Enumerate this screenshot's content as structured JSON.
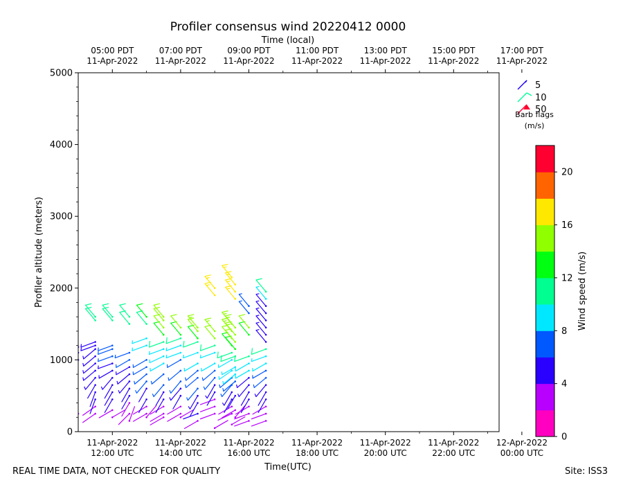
{
  "title": "Profiler consensus wind 20220412 0000",
  "footer": {
    "note": "REAL TIME DATA, NOT CHECKED FOR QUALITY",
    "site": "Site: ISS3"
  },
  "chart_data": {
    "type": "scatter",
    "title": "Profiler consensus wind 20220412 0000",
    "xlabel": "Time(UTC)",
    "x2label": "Time (local)",
    "ylabel": "Profiler altitude (meters)",
    "ylim": [
      0,
      5000
    ],
    "xlim_hours_utc": [
      11.0,
      23.333
    ],
    "yticks": [
      0,
      1000,
      2000,
      3000,
      4000,
      5000
    ],
    "xticks_bottom": [
      {
        "h": 12,
        "line1": "11-Apr-2022",
        "line2": "12:00 UTC"
      },
      {
        "h": 14,
        "line1": "11-Apr-2022",
        "line2": "14:00 UTC"
      },
      {
        "h": 16,
        "line1": "11-Apr-2022",
        "line2": "16:00 UTC"
      },
      {
        "h": 18,
        "line1": "11-Apr-2022",
        "line2": "18:00 UTC"
      },
      {
        "h": 20,
        "line1": "11-Apr-2022",
        "line2": "20:00 UTC"
      },
      {
        "h": 22,
        "line1": "11-Apr-2022",
        "line2": "22:00 UTC"
      },
      {
        "h": 24,
        "line1": "12-Apr-2022",
        "line2": "00:00 UTC"
      }
    ],
    "xticks_top": [
      {
        "h": 12,
        "line1": "05:00 PDT",
        "line2": "11-Apr-2022"
      },
      {
        "h": 14,
        "line1": "07:00 PDT",
        "line2": "11-Apr-2022"
      },
      {
        "h": 16,
        "line1": "09:00 PDT",
        "line2": "11-Apr-2022"
      },
      {
        "h": 18,
        "line1": "11:00 PDT",
        "line2": "11-Apr-2022"
      },
      {
        "h": 20,
        "line1": "13:00 PDT",
        "line2": "11-Apr-2022"
      },
      {
        "h": 22,
        "line1": "15:00 PDT",
        "line2": "11-Apr-2022"
      },
      {
        "h": 24,
        "line1": "17:00 PDT",
        "line2": "11-Apr-2022"
      }
    ],
    "barb_legend": {
      "entries": [
        "5",
        "10",
        "50"
      ],
      "colors": [
        "#1a00ff",
        "#00ff99",
        "#ff0030"
      ],
      "title_line1": "Barb flags",
      "title_line2": "(m/s)"
    },
    "colorbar": {
      "label": "Wind speed (m/s)",
      "range": [
        0,
        22
      ],
      "ticks": [
        0,
        4,
        8,
        12,
        16,
        20
      ],
      "colors": [
        "#ff00c0",
        "#b800ff",
        "#2a00ff",
        "#0058ff",
        "#00e8ff",
        "#00ff90",
        "#00ff10",
        "#90ff00",
        "#ffe800",
        "#ff6400",
        "#ff0030"
      ]
    },
    "profiles": [
      {
        "t": 11.0,
        "points": [
          [
            250,
            3,
            245
          ],
          [
            1000,
            5,
            290
          ],
          [
            1100,
            5,
            290
          ],
          [
            1180,
            5,
            290
          ]
        ]
      },
      {
        "t": 11.5,
        "points": [
          [
            250,
            3,
            235
          ],
          [
            350,
            3,
            235
          ],
          [
            450,
            4,
            200
          ],
          [
            550,
            4,
            200
          ],
          [
            650,
            4,
            210
          ],
          [
            750,
            5,
            220
          ],
          [
            850,
            5,
            230
          ],
          [
            950,
            5,
            230
          ],
          [
            1050,
            5,
            230
          ],
          [
            1150,
            5,
            230
          ],
          [
            1200,
            5,
            250
          ],
          [
            1250,
            5,
            250
          ],
          [
            1550,
            10,
            320
          ],
          [
            1600,
            10,
            320
          ]
        ]
      },
      {
        "t": 12.0,
        "points": [
          [
            200,
            2,
            60
          ],
          [
            300,
            3,
            240
          ],
          [
            450,
            4,
            210
          ],
          [
            550,
            4,
            210
          ],
          [
            650,
            4,
            210
          ],
          [
            750,
            5,
            220
          ],
          [
            850,
            5,
            240
          ],
          [
            950,
            5,
            250
          ],
          [
            1050,
            6,
            250
          ],
          [
            1150,
            6,
            250
          ],
          [
            1200,
            6,
            250
          ],
          [
            1550,
            10,
            320
          ],
          [
            1600,
            10,
            320
          ]
        ]
      },
      {
        "t": 12.5,
        "points": [
          [
            150,
            2,
            20
          ],
          [
            250,
            3,
            225
          ],
          [
            400,
            3,
            210
          ],
          [
            500,
            4,
            210
          ],
          [
            600,
            4,
            210
          ],
          [
            700,
            5,
            220
          ],
          [
            800,
            5,
            230
          ],
          [
            900,
            5,
            240
          ],
          [
            1000,
            6,
            240
          ],
          [
            1100,
            7,
            250
          ],
          [
            1500,
            10,
            320
          ],
          [
            1600,
            11,
            320
          ]
        ]
      },
      {
        "t": 13.0,
        "points": [
          [
            200,
            2,
            40
          ],
          [
            250,
            3,
            240
          ],
          [
            350,
            3,
            240
          ],
          [
            450,
            4,
            210
          ],
          [
            600,
            4,
            210
          ],
          [
            700,
            6,
            220
          ],
          [
            800,
            7,
            230
          ],
          [
            900,
            7,
            240
          ],
          [
            1000,
            7,
            240
          ],
          [
            1200,
            9,
            250
          ],
          [
            1300,
            9,
            250
          ],
          [
            1500,
            11,
            320
          ],
          [
            1600,
            12,
            320
          ]
        ]
      },
      {
        "t": 13.5,
        "points": [
          [
            200,
            3,
            240
          ],
          [
            250,
            3,
            240
          ],
          [
            350,
            3,
            240
          ],
          [
            450,
            4,
            210
          ],
          [
            550,
            4,
            210
          ],
          [
            650,
            6,
            220
          ],
          [
            800,
            7,
            230
          ],
          [
            950,
            8,
            240
          ],
          [
            1050,
            8,
            245
          ],
          [
            1150,
            9,
            250
          ],
          [
            1250,
            10,
            250
          ],
          [
            1350,
            12,
            320
          ],
          [
            1450,
            14,
            320
          ],
          [
            1550,
            14,
            320
          ],
          [
            1600,
            14,
            320
          ]
        ]
      },
      {
        "t": 14.0,
        "points": [
          [
            200,
            2,
            60
          ],
          [
            250,
            3,
            240
          ],
          [
            350,
            3,
            240
          ],
          [
            500,
            4,
            210
          ],
          [
            600,
            5,
            220
          ],
          [
            700,
            7,
            220
          ],
          [
            850,
            7,
            230
          ],
          [
            1000,
            7,
            240
          ],
          [
            1100,
            8,
            250
          ],
          [
            1200,
            9,
            250
          ],
          [
            1300,
            10,
            250
          ],
          [
            1350,
            12,
            320
          ],
          [
            1450,
            14,
            320
          ]
        ]
      },
      {
        "t": 14.5,
        "points": [
          [
            150,
            3,
            240
          ],
          [
            250,
            4,
            250
          ],
          [
            400,
            4,
            210
          ],
          [
            500,
            5,
            210
          ],
          [
            600,
            6,
            220
          ],
          [
            750,
            7,
            230
          ],
          [
            850,
            7,
            230
          ],
          [
            950,
            8,
            240
          ],
          [
            1100,
            9,
            250
          ],
          [
            1250,
            10,
            250
          ],
          [
            1300,
            12,
            320
          ],
          [
            1400,
            14,
            320
          ],
          [
            1450,
            15,
            320
          ]
        ]
      },
      {
        "t": 15.0,
        "points": [
          [
            50,
            3,
            60
          ],
          [
            250,
            3,
            250
          ],
          [
            350,
            3,
            250
          ],
          [
            450,
            3,
            250
          ],
          [
            550,
            4,
            210
          ],
          [
            650,
            5,
            210
          ],
          [
            750,
            6,
            220
          ],
          [
            850,
            7,
            230
          ],
          [
            950,
            8,
            240
          ],
          [
            1100,
            9,
            250
          ],
          [
            1200,
            10,
            250
          ],
          [
            1300,
            14,
            320
          ],
          [
            1400,
            15,
            320
          ],
          [
            1900,
            16,
            320
          ],
          [
            2000,
            16,
            320
          ]
        ]
      },
      {
        "t": 15.5,
        "points": [
          [
            100,
            3,
            60
          ],
          [
            250,
            3,
            245
          ],
          [
            350,
            3,
            240
          ],
          [
            450,
            4,
            210
          ],
          [
            550,
            5,
            210
          ],
          [
            650,
            6,
            220
          ],
          [
            750,
            7,
            230
          ],
          [
            850,
            8,
            235
          ],
          [
            1000,
            9,
            240
          ],
          [
            1100,
            10,
            250
          ],
          [
            1200,
            12,
            320
          ],
          [
            1300,
            14,
            320
          ],
          [
            1400,
            15,
            320
          ],
          [
            1500,
            15,
            320
          ],
          [
            2150,
            17,
            320
          ]
        ]
      },
      {
        "t": 15.6,
        "points": [
          [
            200,
            2,
            40
          ],
          [
            300,
            3,
            240
          ],
          [
            500,
            4,
            210
          ],
          [
            700,
            7,
            230
          ],
          [
            800,
            8,
            230
          ],
          [
            900,
            8,
            240
          ],
          [
            1050,
            11,
            250
          ],
          [
            1150,
            13,
            320
          ],
          [
            1250,
            14,
            320
          ],
          [
            1350,
            15,
            320
          ],
          [
            1450,
            15,
            320
          ],
          [
            1850,
            16,
            320
          ],
          [
            1950,
            17,
            320
          ],
          [
            2050,
            17,
            320
          ]
        ]
      },
      {
        "t": 16.0,
        "points": [
          [
            150,
            3,
            250
          ],
          [
            250,
            3,
            250
          ],
          [
            350,
            3,
            240
          ],
          [
            450,
            4,
            210
          ],
          [
            550,
            4,
            210
          ],
          [
            650,
            5,
            220
          ],
          [
            750,
            5,
            230
          ],
          [
            850,
            8,
            240
          ],
          [
            950,
            9,
            240
          ],
          [
            1050,
            10,
            250
          ],
          [
            1350,
            12,
            320
          ],
          [
            1450,
            14,
            320
          ],
          [
            1650,
            6,
            320
          ],
          [
            1750,
            6,
            320
          ]
        ]
      },
      {
        "t": 16.5,
        "points": [
          [
            150,
            3,
            250
          ],
          [
            250,
            3,
            250
          ],
          [
            350,
            3,
            240
          ],
          [
            450,
            4,
            210
          ],
          [
            550,
            4,
            210
          ],
          [
            650,
            5,
            220
          ],
          [
            750,
            6,
            230
          ],
          [
            850,
            7,
            240
          ],
          [
            950,
            8,
            240
          ],
          [
            1050,
            9,
            250
          ],
          [
            1150,
            10,
            250
          ],
          [
            1250,
            5,
            320
          ],
          [
            1350,
            5,
            320
          ],
          [
            1450,
            5,
            320
          ],
          [
            1550,
            5,
            320
          ],
          [
            1650,
            5,
            320
          ],
          [
            1750,
            5,
            320
          ],
          [
            1850,
            9,
            320
          ],
          [
            1950,
            10,
            320
          ]
        ]
      }
    ]
  }
}
